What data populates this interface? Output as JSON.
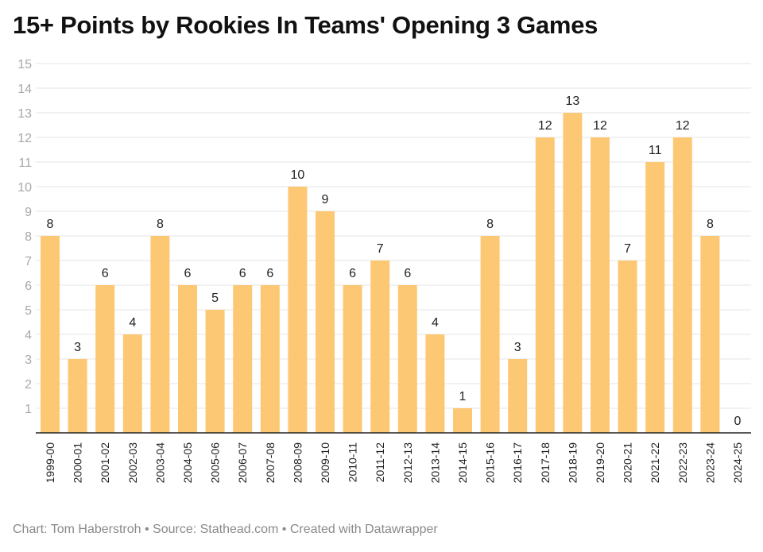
{
  "chart_data": {
    "type": "bar",
    "title": "15+ Points by Rookies In Teams' Opening 3 Games",
    "categories": [
      "1999-00",
      "2000-01",
      "2001-02",
      "2002-03",
      "2003-04",
      "2004-05",
      "2005-06",
      "2006-07",
      "2007-08",
      "2008-09",
      "2009-10",
      "2010-11",
      "2011-12",
      "2012-13",
      "2013-14",
      "2014-15",
      "2015-16",
      "2016-17",
      "2017-18",
      "2018-19",
      "2019-20",
      "2020-21",
      "2021-22",
      "2022-23",
      "2023-24",
      "2024-25"
    ],
    "values": [
      8,
      3,
      6,
      4,
      8,
      6,
      5,
      6,
      6,
      10,
      9,
      6,
      7,
      6,
      4,
      1,
      8,
      3,
      12,
      13,
      12,
      7,
      11,
      12,
      8,
      0
    ],
    "ylim": [
      0,
      15
    ],
    "yticks": [
      1,
      2,
      3,
      4,
      5,
      6,
      7,
      8,
      9,
      10,
      11,
      12,
      13,
      14,
      15
    ],
    "grid": true,
    "data_labels": true,
    "bar_color": "#fdc874",
    "xlabel": "",
    "ylabel": ""
  },
  "footer": "Chart: Tom Haberstroh • Source: Stathead.com • Created with Datawrapper"
}
